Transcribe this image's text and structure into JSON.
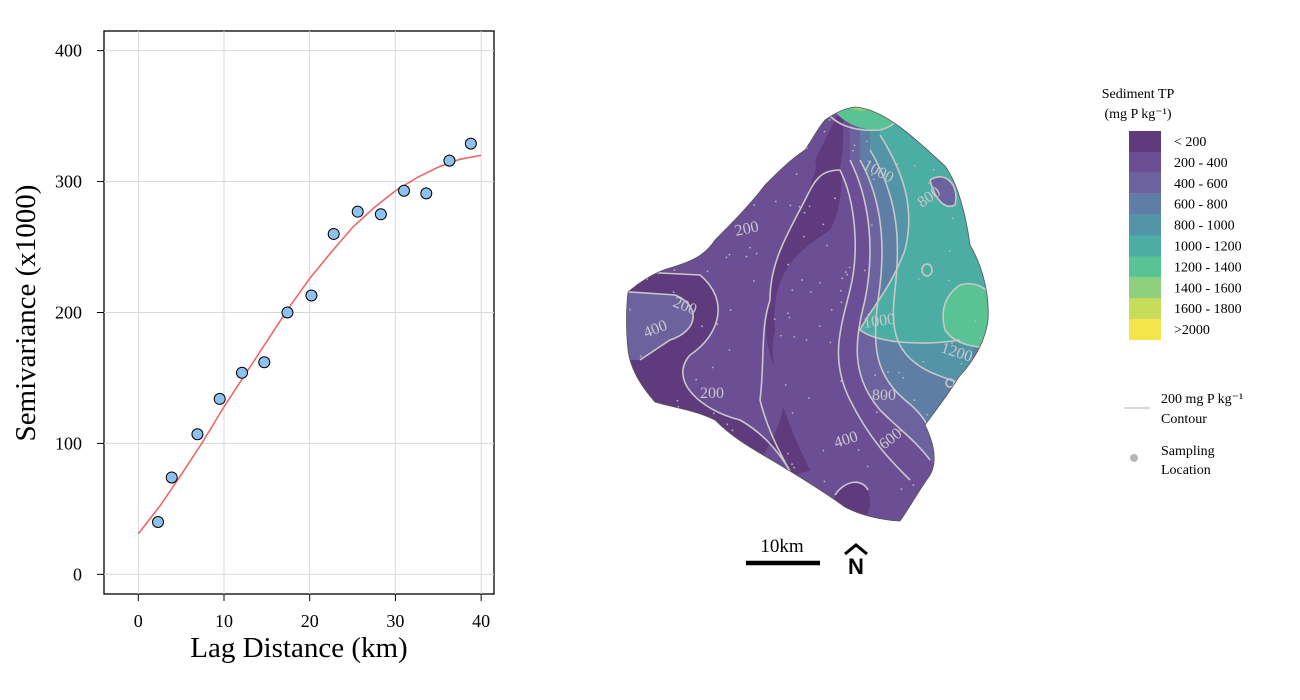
{
  "chart_data": [
    {
      "type": "scatter",
      "xlabel": "Lag Distance (km)",
      "ylabel": "Semivariance (x1000)",
      "xlim": [
        -4,
        41.5
      ],
      "ylim": [
        -15,
        415
      ],
      "xticks": [
        0,
        10,
        20,
        30,
        40
      ],
      "yticks": [
        0,
        100,
        200,
        300,
        400
      ],
      "grid": true,
      "point_color": "#8ec0f0",
      "curve_color": "#ee6666",
      "points": [
        {
          "x": 2.3,
          "y": 40
        },
        {
          "x": 3.9,
          "y": 74
        },
        {
          "x": 6.9,
          "y": 107
        },
        {
          "x": 9.5,
          "y": 134
        },
        {
          "x": 12.1,
          "y": 154
        },
        {
          "x": 14.7,
          "y": 162
        },
        {
          "x": 17.4,
          "y": 200
        },
        {
          "x": 20.2,
          "y": 213
        },
        {
          "x": 22.8,
          "y": 260
        },
        {
          "x": 25.6,
          "y": 277
        },
        {
          "x": 28.3,
          "y": 275
        },
        {
          "x": 31.0,
          "y": 293
        },
        {
          "x": 33.6,
          "y": 291
        },
        {
          "x": 36.3,
          "y": 316
        },
        {
          "x": 38.8,
          "y": 329
        }
      ],
      "model_curve": {
        "x": [
          0,
          2.5,
          5,
          7.5,
          10,
          12.5,
          15,
          17.5,
          20,
          22.5,
          25,
          27.5,
          30,
          32.5,
          35,
          37.5,
          40
        ],
        "y": [
          31,
          52,
          76,
          101,
          128,
          153,
          178,
          203,
          226,
          246,
          265,
          280,
          293,
          303,
          311,
          317,
          320
        ]
      }
    },
    {
      "type": "heatmap",
      "legend_title": "Sediment TP",
      "legend_unit": "(mg P kg⁻¹)",
      "classes": [
        {
          "label": "< 200",
          "color": "#5f3a7c"
        },
        {
          "label": "200 - 400",
          "color": "#6c4e94"
        },
        {
          "label": "400 - 600",
          "color": "#6b629e"
        },
        {
          "label": "600 - 800",
          "color": "#5e7ea5"
        },
        {
          "label": "800 - 1000",
          "color": "#5395a7"
        },
        {
          "label": "1000 - 1200",
          "color": "#4cada4"
        },
        {
          "label": "1200 - 1400",
          "color": "#5ac394"
        },
        {
          "label": "1400 - 1600",
          "color": "#8fd07c"
        },
        {
          "label": "1600 - 1800",
          "color": "#c7dc58"
        },
        {
          "label": ">2000",
          "color": "#f3e64d"
        }
      ],
      "contour_legend": {
        "line1": "200 mg P kg⁻¹",
        "line2": "Contour",
        "color": "#c8c8c8"
      },
      "sampling_legend": {
        "line1": "Sampling",
        "line2": "Location",
        "color": "#b8b8b8"
      },
      "contour_labels": [
        "1000",
        "800",
        "200",
        "200",
        "400",
        "1000",
        "1200",
        "800",
        "200",
        "400",
        "600"
      ],
      "scale_bar_label": "10km",
      "north_label": "N"
    }
  ]
}
